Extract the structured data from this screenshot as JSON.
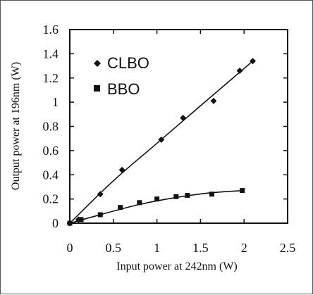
{
  "chart_data": {
    "type": "scatter",
    "xlabel": "Input power at 242nm (W)",
    "ylabel": "Output power at 196nm (W)",
    "xlim": [
      0,
      2.5
    ],
    "ylim": [
      0,
      1.6
    ],
    "x_ticks": [
      0,
      0.5,
      1,
      1.5,
      2,
      2.5
    ],
    "x_tick_labels": [
      "0",
      "0.5",
      "1",
      "1.5",
      "2",
      "2.5"
    ],
    "y_ticks": [
      0,
      0.2,
      0.4,
      0.6,
      0.8,
      1.0,
      1.2,
      1.4,
      1.6
    ],
    "y_tick_labels": [
      "0",
      "0.2",
      "0.4",
      "0.6",
      "0.8",
      "1",
      "1.2",
      "1.4",
      "1.6"
    ],
    "grid": false,
    "legend_position": "top-left",
    "series": [
      {
        "name": "CLBO",
        "marker": "diamond",
        "color": "#111111",
        "points": [
          {
            "x": 0.0,
            "y": 0.0
          },
          {
            "x": 0.1,
            "y": 0.03
          },
          {
            "x": 0.35,
            "y": 0.24
          },
          {
            "x": 0.6,
            "y": 0.44
          },
          {
            "x": 1.05,
            "y": 0.69
          },
          {
            "x": 1.3,
            "y": 0.87
          },
          {
            "x": 1.65,
            "y": 1.01
          },
          {
            "x": 1.95,
            "y": 1.26
          },
          {
            "x": 2.1,
            "y": 1.34
          }
        ],
        "fit": [
          {
            "x": 0.0,
            "y": 0.0
          },
          {
            "x": 0.5,
            "y": 0.35
          },
          {
            "x": 1.0,
            "y": 0.66
          },
          {
            "x": 1.5,
            "y": 0.97
          },
          {
            "x": 2.1,
            "y": 1.34
          }
        ]
      },
      {
        "name": "BBO",
        "marker": "square",
        "color": "#111111",
        "points": [
          {
            "x": 0.0,
            "y": 0.0
          },
          {
            "x": 0.13,
            "y": 0.03
          },
          {
            "x": 0.35,
            "y": 0.07
          },
          {
            "x": 0.58,
            "y": 0.13
          },
          {
            "x": 0.8,
            "y": 0.17
          },
          {
            "x": 1.0,
            "y": 0.2
          },
          {
            "x": 1.22,
            "y": 0.22
          },
          {
            "x": 1.35,
            "y": 0.23
          },
          {
            "x": 1.63,
            "y": 0.24
          },
          {
            "x": 1.98,
            "y": 0.27
          }
        ],
        "fit": [
          {
            "x": 0.0,
            "y": 0.0
          },
          {
            "x": 0.4,
            "y": 0.08
          },
          {
            "x": 0.8,
            "y": 0.155
          },
          {
            "x": 1.2,
            "y": 0.21
          },
          {
            "x": 1.6,
            "y": 0.25
          },
          {
            "x": 2.0,
            "y": 0.27
          }
        ]
      }
    ]
  }
}
